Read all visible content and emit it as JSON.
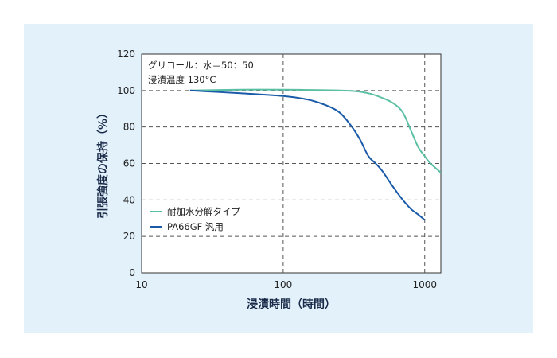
{
  "chart_data": {
    "type": "line",
    "xscale": "log",
    "xlim": [
      10,
      1300
    ],
    "ylim": [
      0,
      120
    ],
    "xticks": [
      10,
      100,
      1000
    ],
    "xtick_labels": [
      "10",
      "100",
      "1000"
    ],
    "yticks": [
      0,
      20,
      40,
      60,
      80,
      100,
      120
    ],
    "ytick_labels": [
      "0",
      "20",
      "40",
      "60",
      "80",
      "100",
      "120"
    ],
    "xlabel": "浸漬時間（時間）",
    "ylabel": "引張強度の保持（%）",
    "grid": "dashed at 100 and 1000 on x; 20,40,60,80,100 on y",
    "annotations": [
      "グリコール：水＝50：50",
      "浸漬温度 130°C"
    ],
    "legend_position": "lower-left",
    "series": [
      {
        "name": "耐加水分解タイプ",
        "color": "#5bbfa4",
        "x": [
          22,
          50,
          100,
          200,
          300,
          400,
          500,
          600,
          700,
          800,
          900,
          1000,
          1100,
          1300
        ],
        "y": [
          100,
          100.5,
          100.5,
          100.2,
          99.8,
          98.5,
          96,
          93,
          88,
          78,
          69,
          64,
          60,
          55
        ]
      },
      {
        "name": "PA66GF 汎用",
        "color": "#1a5aa8",
        "x": [
          22,
          50,
          100,
          150,
          200,
          250,
          300,
          350,
          400,
          450,
          500,
          600,
          700,
          800,
          900,
          1000
        ],
        "y": [
          100,
          98.5,
          97,
          95,
          92,
          88,
          81,
          73,
          64,
          60,
          56,
          47,
          40,
          35,
          32,
          29
        ]
      }
    ]
  }
}
